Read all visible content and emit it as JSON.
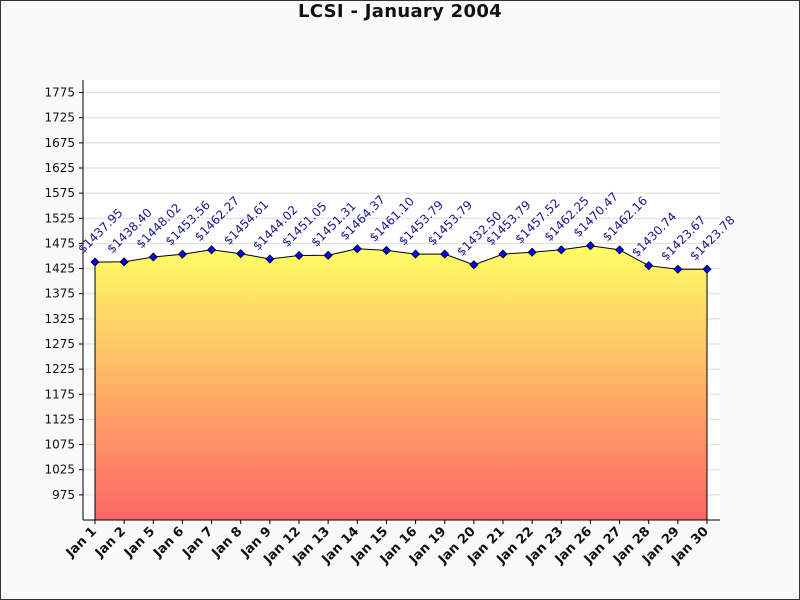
{
  "chart_data": {
    "type": "area",
    "title": "LCSI - January 2004",
    "xlabel": "",
    "ylabel": "",
    "categories": [
      "Jan 1",
      "Jan 2",
      "Jan 5",
      "Jan 6",
      "Jan 7",
      "Jan 8",
      "Jan 9",
      "Jan 12",
      "Jan 13",
      "Jan 14",
      "Jan 15",
      "Jan 16",
      "Jan 19",
      "Jan 20",
      "Jan 21",
      "Jan 22",
      "Jan 23",
      "Jan 26",
      "Jan 27",
      "Jan 28",
      "Jan 29",
      "Jan 30"
    ],
    "values": [
      1437.95,
      1438.4,
      1448.02,
      1453.56,
      1462.27,
      1454.61,
      1444.02,
      1451.05,
      1451.31,
      1464.37,
      1461.1,
      1453.79,
      1453.79,
      1432.5,
      1453.79,
      1457.52,
      1462.25,
      1470.47,
      1462.16,
      1430.74,
      1423.67,
      1423.78
    ],
    "data_labels": [
      "$1437.95",
      "$1438.40",
      "$1448.02",
      "$1453.56",
      "$1462.27",
      "$1454.61",
      "$1444.02",
      "$1451.05",
      "$1451.31",
      "$1464.37",
      "$1461.10",
      "$1453.79",
      "$1453.79",
      "$1432.50",
      "$1453.79",
      "$1457.52",
      "$1462.25",
      "$1470.47",
      "$1462.16",
      "$1430.74",
      "$1423.67",
      "$1423.78"
    ],
    "ylim": [
      925,
      1800
    ],
    "yticks": [
      "975",
      "1025",
      "1075",
      "1125",
      "1175",
      "1225",
      "1275",
      "1325",
      "1375",
      "1425",
      "1475",
      "1525",
      "1575",
      "1625",
      "1675",
      "1725",
      "1775"
    ],
    "grid": true,
    "legend": "none",
    "colors": {
      "fill_top": "#ffff66",
      "fill_bottom": "#ff6666",
      "line": "#000000",
      "marker": "#0000ff",
      "data_label": "#1a1a8c"
    }
  }
}
